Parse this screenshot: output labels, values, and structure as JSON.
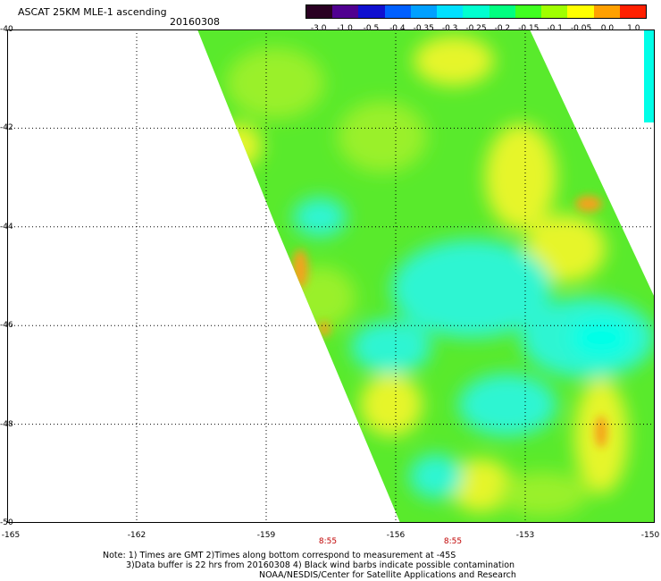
{
  "header": {
    "title": "ASCAT 25KM MLE-1 ascending",
    "date": "20160308"
  },
  "colorbar": {
    "labels": [
      "-3.0",
      "-1.0",
      "-0.5",
      "-0.4",
      "-0.35",
      "-0.3",
      "-0.25",
      "-0.2",
      "-0.15",
      "-0.1",
      "-0.05",
      "0.0",
      "1.0"
    ],
    "colors": [
      "#2a0022",
      "#500090",
      "#1010d0",
      "#0060ff",
      "#00a0ff",
      "#00e0ff",
      "#00ffd0",
      "#00ff80",
      "#40ff20",
      "#a0ff00",
      "#ffff00",
      "#ffa000",
      "#ff2000"
    ]
  },
  "map": {
    "lat_labels": [
      "-40",
      "-42",
      "-44",
      "-46",
      "-48",
      "-50"
    ],
    "lon_labels": [
      "-165",
      "-162",
      "-159",
      "-156",
      "-153",
      "-150"
    ],
    "time_labels": [
      "8:55",
      "8:55"
    ],
    "swath_colors": {
      "base": "#59ea2c",
      "light": "#9af02a",
      "yellow": "#e6f52a",
      "cyan": "#2ff5d2",
      "aqua": "#00ffe8",
      "orange": "#f5a21a"
    }
  },
  "notes": {
    "line1": "Note: 1) Times are GMT 2)Times along bottom correspond to measurement at -45S",
    "line2": "3)Data buffer is 22 hrs from 20160308 4) Black wind barbs indicate possible contamination",
    "line3": "NOAA/NESDIS/Center for Satellite Applications and Research"
  }
}
